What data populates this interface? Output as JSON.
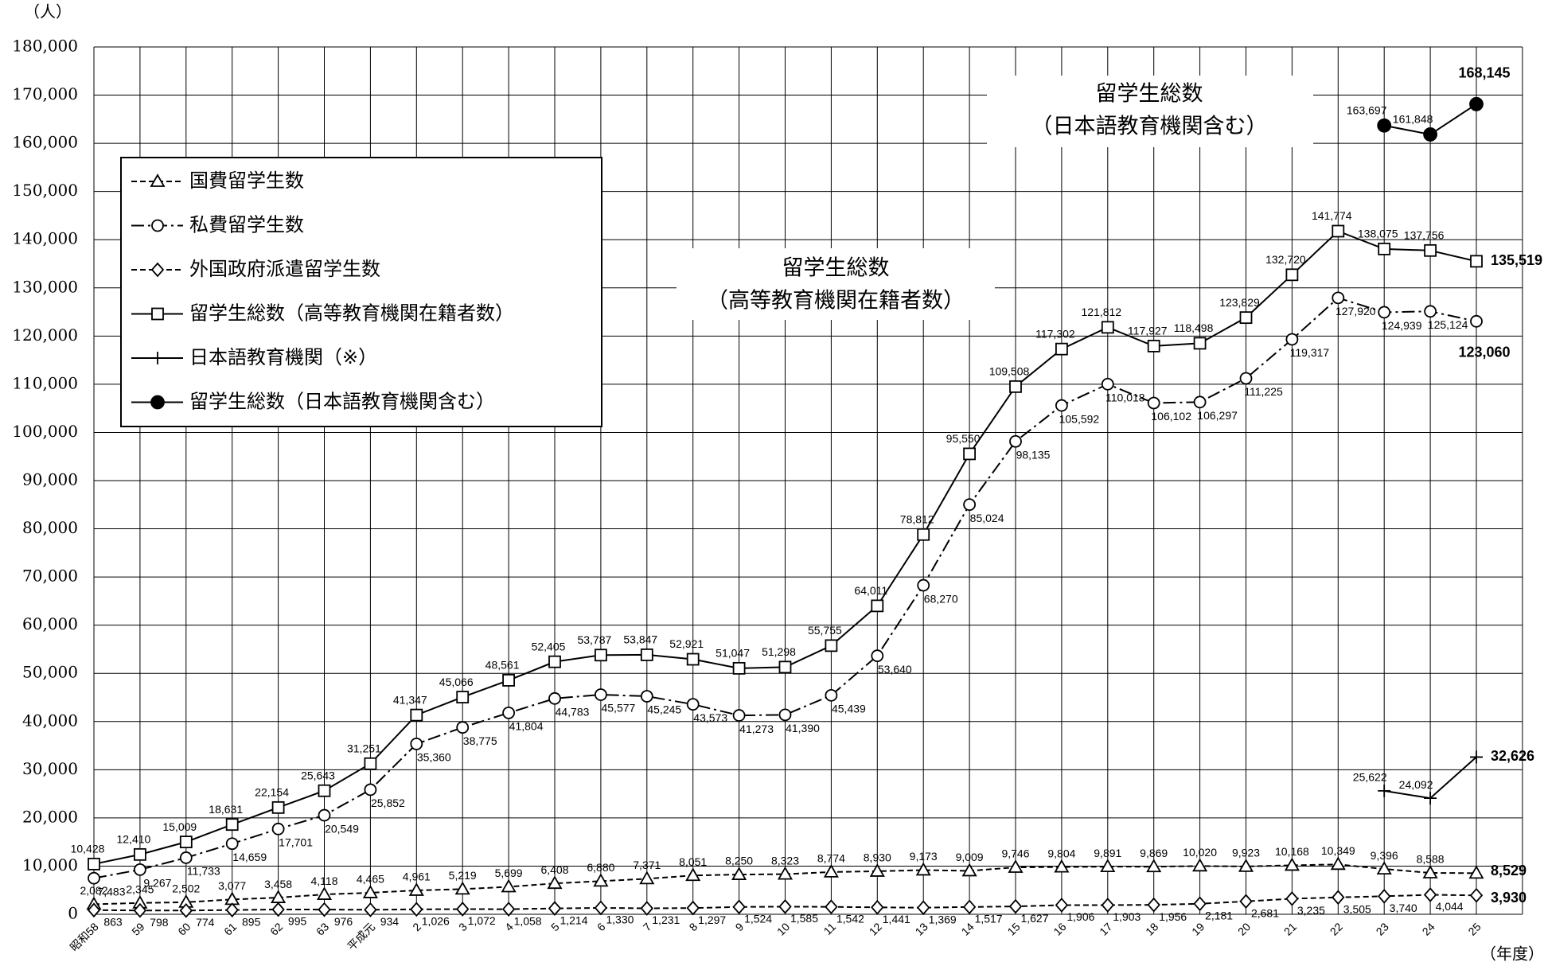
{
  "chart_data": {
    "type": "line",
    "y_unit_label": "（人）",
    "x_unit_label": "（年度）",
    "annotations": [
      "留学生総数",
      "（日本語教育機関含む）",
      "留学生総数",
      "（高等教育機関在籍者数）"
    ],
    "categories": [
      "昭和58",
      "59",
      "60",
      "61",
      "62",
      "63",
      "平成元",
      "2",
      "3",
      "4",
      "5",
      "6",
      "7",
      "8",
      "9",
      "10",
      "11",
      "12",
      "13",
      "14",
      "15",
      "16",
      "17",
      "18",
      "19",
      "20",
      "21",
      "22",
      "23",
      "24",
      "25"
    ],
    "ylim": [
      0,
      180000
    ],
    "yticks": [
      0,
      {
        "value": 10000,
        "label": "10,000"
      },
      {
        "value": 20000,
        "label": "20,000"
      },
      {
        "value": 30000,
        "label": "30,000"
      },
      {
        "value": 40000,
        "label": "40,000"
      },
      {
        "value": 50000,
        "label": "50,000"
      },
      {
        "value": 60000,
        "label": "60,000"
      },
      {
        "value": 70000,
        "label": "70,000"
      },
      {
        "value": 80000,
        "label": "80,000"
      },
      {
        "value": 90000,
        "label": "90,000"
      },
      {
        "value": 100000,
        "label": "100,000"
      },
      {
        "value": 110000,
        "label": "110,000"
      },
      {
        "value": 120000,
        "label": "120,000"
      },
      {
        "value": 130000,
        "label": "130,000"
      },
      {
        "value": 140000,
        "label": "140,000"
      },
      {
        "value": 150000,
        "label": "150,000"
      },
      {
        "value": 160000,
        "label": "160,000"
      },
      {
        "value": 170000,
        "label": "170,000"
      },
      {
        "value": 180000,
        "label": "180,000"
      }
    ],
    "grid": true,
    "series": [
      {
        "name": "国費留学生数",
        "color": "#000000",
        "style": "dashed",
        "marker": "triangle",
        "values": [
          2082,
          2345,
          2502,
          3077,
          3458,
          4118,
          4465,
          4961,
          5219,
          5699,
          6408,
          6880,
          7371,
          8051,
          8250,
          8323,
          8774,
          8930,
          9173,
          9009,
          9746,
          9804,
          9891,
          9869,
          10020,
          9923,
          10168,
          10349,
          9396,
          8588,
          8529
        ],
        "value_labels": [
          "2,082",
          "2,345",
          "2,502",
          "3,077",
          "3,458",
          "4,118",
          "4,465",
          "4,961",
          "5,219",
          "5,699",
          "6,408",
          "6,880",
          "7,371",
          "8,051",
          "8,250",
          "8,323",
          "8,774",
          "8,930",
          "9,173",
          "9,009",
          "9,746",
          "9,804",
          "9,891",
          "9,869",
          "10,020",
          "9,923",
          "10,168",
          "10,349",
          "9,396",
          "8,588",
          "8,529"
        ]
      },
      {
        "name": "私費留学生数",
        "color": "#000000",
        "style": "dashdot",
        "marker": "circle",
        "values": [
          7483,
          9267,
          11733,
          14659,
          17701,
          20549,
          25852,
          35360,
          38775,
          41804,
          44783,
          45577,
          45245,
          43573,
          41273,
          41390,
          45439,
          53640,
          68270,
          85024,
          98135,
          105592,
          110018,
          106102,
          106297,
          111225,
          119317,
          127920,
          124939,
          125124,
          123060
        ],
        "value_labels": [
          "7,483",
          "9,267",
          "11,733",
          "14,659",
          "17,701",
          "20,549",
          "25,852",
          "35,360",
          "38,775",
          "41,804",
          "44,783",
          "45,577",
          "45,245",
          "43,573",
          "41,273",
          "41,390",
          "45,439",
          "53,640",
          "68,270",
          "85,024",
          "98,135",
          "105,592",
          "110,018",
          "106,102",
          "106,297",
          "111,225",
          "119,317",
          "127,920",
          "124,939",
          "125,124",
          "123,060"
        ]
      },
      {
        "name": "外国政府派遣留学生数",
        "color": "#000000",
        "style": "dashed",
        "marker": "diamond",
        "values": [
          863,
          798,
          774,
          895,
          995,
          976,
          934,
          1026,
          1072,
          1058,
          1214,
          1330,
          1231,
          1297,
          1524,
          1585,
          1542,
          1441,
          1369,
          1517,
          1627,
          1906,
          1903,
          1956,
          2181,
          2681,
          3235,
          3505,
          3740,
          4044,
          3930
        ],
        "value_labels": [
          "863",
          "798",
          "774",
          "895",
          "995",
          "976",
          "934",
          "1,026",
          "1,072",
          "1,058",
          "1,214",
          "1,330",
          "1,231",
          "1,297",
          "1,524",
          "1,585",
          "1,542",
          "1,441",
          "1,369",
          "1,517",
          "1,627",
          "1,906",
          "1,903",
          "1,956",
          "2,181",
          "2,681",
          "3,235",
          "3,505",
          "3,740",
          "4,044",
          "3,930"
        ]
      },
      {
        "name": "留学生総数（高等教育機関在籍者数）",
        "color": "#000000",
        "style": "solid",
        "marker": "square",
        "values": [
          10428,
          12410,
          15009,
          18631,
          22154,
          25643,
          31251,
          41347,
          45066,
          48561,
          52405,
          53787,
          53847,
          52921,
          51047,
          51298,
          55755,
          64011,
          78812,
          95550,
          109508,
          117302,
          121812,
          117927,
          118498,
          123829,
          132720,
          141774,
          138075,
          137756,
          135519
        ],
        "value_labels": [
          "10,428",
          "12,410",
          "15,009",
          "18,631",
          "22,154",
          "25,643",
          "31,251",
          "41,347",
          "45,066",
          "48,561",
          "52,405",
          "53,787",
          "53,847",
          "52,921",
          "51,047",
          "51,298",
          "55,755",
          "64,011",
          "78,812",
          "95,550",
          "109,508",
          "117,302",
          "121,812",
          "117,927",
          "118,498",
          "123,829",
          "132,720",
          "141,774",
          "138,075",
          "137,756",
          "135,519"
        ]
      },
      {
        "name": "日本語教育機関（※）",
        "color": "#000000",
        "style": "solid",
        "marker": "plus",
        "values": [
          null,
          null,
          null,
          null,
          null,
          null,
          null,
          null,
          null,
          null,
          null,
          null,
          null,
          null,
          null,
          null,
          null,
          null,
          null,
          null,
          null,
          null,
          null,
          null,
          null,
          null,
          null,
          null,
          25622,
          24092,
          32626
        ],
        "value_labels": [
          null,
          null,
          null,
          null,
          null,
          null,
          null,
          null,
          null,
          null,
          null,
          null,
          null,
          null,
          null,
          null,
          null,
          null,
          null,
          null,
          null,
          null,
          null,
          null,
          null,
          null,
          null,
          null,
          "25,622",
          "24,092",
          "32,626"
        ]
      },
      {
        "name": "留学生総数（日本語教育機関含む）",
        "color": "#000000",
        "style": "solid",
        "marker": "dot",
        "values": [
          null,
          null,
          null,
          null,
          null,
          null,
          null,
          null,
          null,
          null,
          null,
          null,
          null,
          null,
          null,
          null,
          null,
          null,
          null,
          null,
          null,
          null,
          null,
          null,
          null,
          null,
          null,
          null,
          163697,
          161848,
          168145
        ],
        "value_labels": [
          null,
          null,
          null,
          null,
          null,
          null,
          null,
          null,
          null,
          null,
          null,
          null,
          null,
          null,
          null,
          null,
          null,
          null,
          null,
          null,
          null,
          null,
          null,
          null,
          null,
          null,
          null,
          null,
          "163,697",
          "161,848",
          "168,145"
        ]
      }
    ]
  }
}
